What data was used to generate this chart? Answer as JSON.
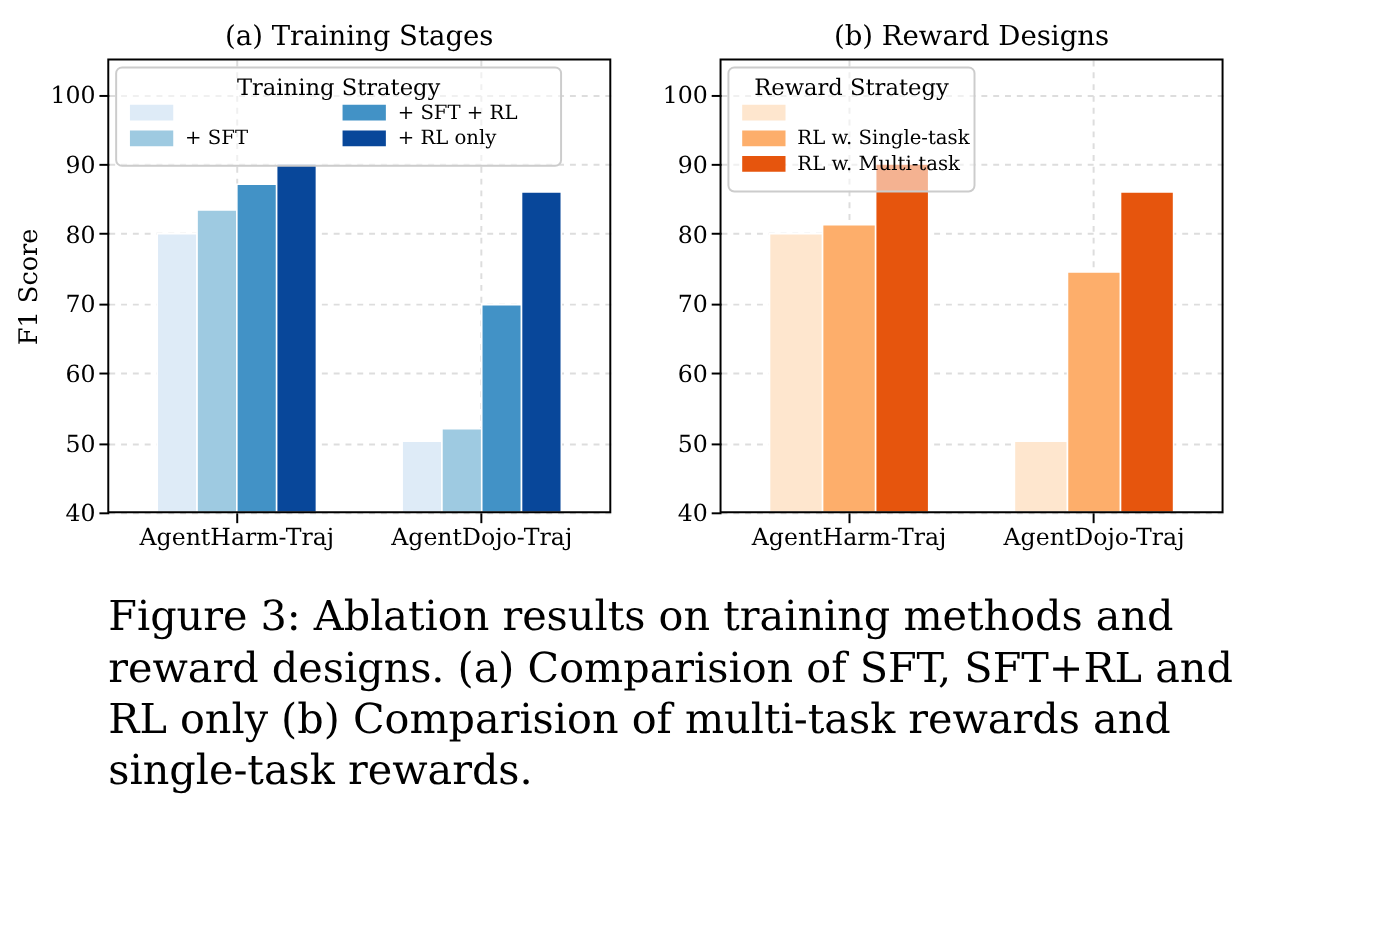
{
  "chart_data": [
    {
      "type": "bar",
      "title": "(a) Training Stages",
      "ylabel": "F1 Score",
      "legend_title": "Training Strategy",
      "legend": "top left",
      "grid": true,
      "categories": [
        "AgentHarm-Traj",
        "AgentDojo-Traj"
      ],
      "ylim": [
        40,
        105
      ],
      "yticks": [
        40,
        50,
        60,
        70,
        80,
        90,
        100
      ],
      "series": [
        {
          "color": "#deebf7",
          "values": [
            80,
            50.2
          ]
        },
        {
          "name": "+ SFT",
          "color": "#9ecae1",
          "values": [
            83.4,
            52
          ]
        },
        {
          "name": "+ SFT + RL",
          "color": "#4292c6",
          "values": [
            87.1,
            69.8
          ]
        },
        {
          "name": "+ RL only",
          "color": "#08479a",
          "values": [
            90,
            86
          ]
        }
      ],
      "annotations": [
        "Figure 3: Ablation results on training methods and reward designs. (a) Comparision of SFT, SFT+RL and RL only (b) Comparision of multi-task rewards and single-task rewards."
      ]
    },
    {
      "type": "bar",
      "title": "(b) Reward Designs",
      "legend_title": "Reward Strategy",
      "legend": "top left",
      "grid": true,
      "categories": [
        "AgentHarm-Traj",
        "AgentDojo-Traj"
      ],
      "ylim": [
        40,
        105
      ],
      "yticks": [
        40,
        50,
        60,
        70,
        80,
        90,
        100
      ],
      "series": [
        {
          "color": "#fee6ce",
          "values": [
            80,
            50.2
          ]
        },
        {
          "name": "RL w. Single-task",
          "color": "#fdae6b",
          "values": [
            81.3,
            74.5
          ]
        },
        {
          "name": "RL w. Multi-task",
          "color": "#e6550d",
          "values": [
            90,
            86
          ]
        }
      ]
    }
  ]
}
